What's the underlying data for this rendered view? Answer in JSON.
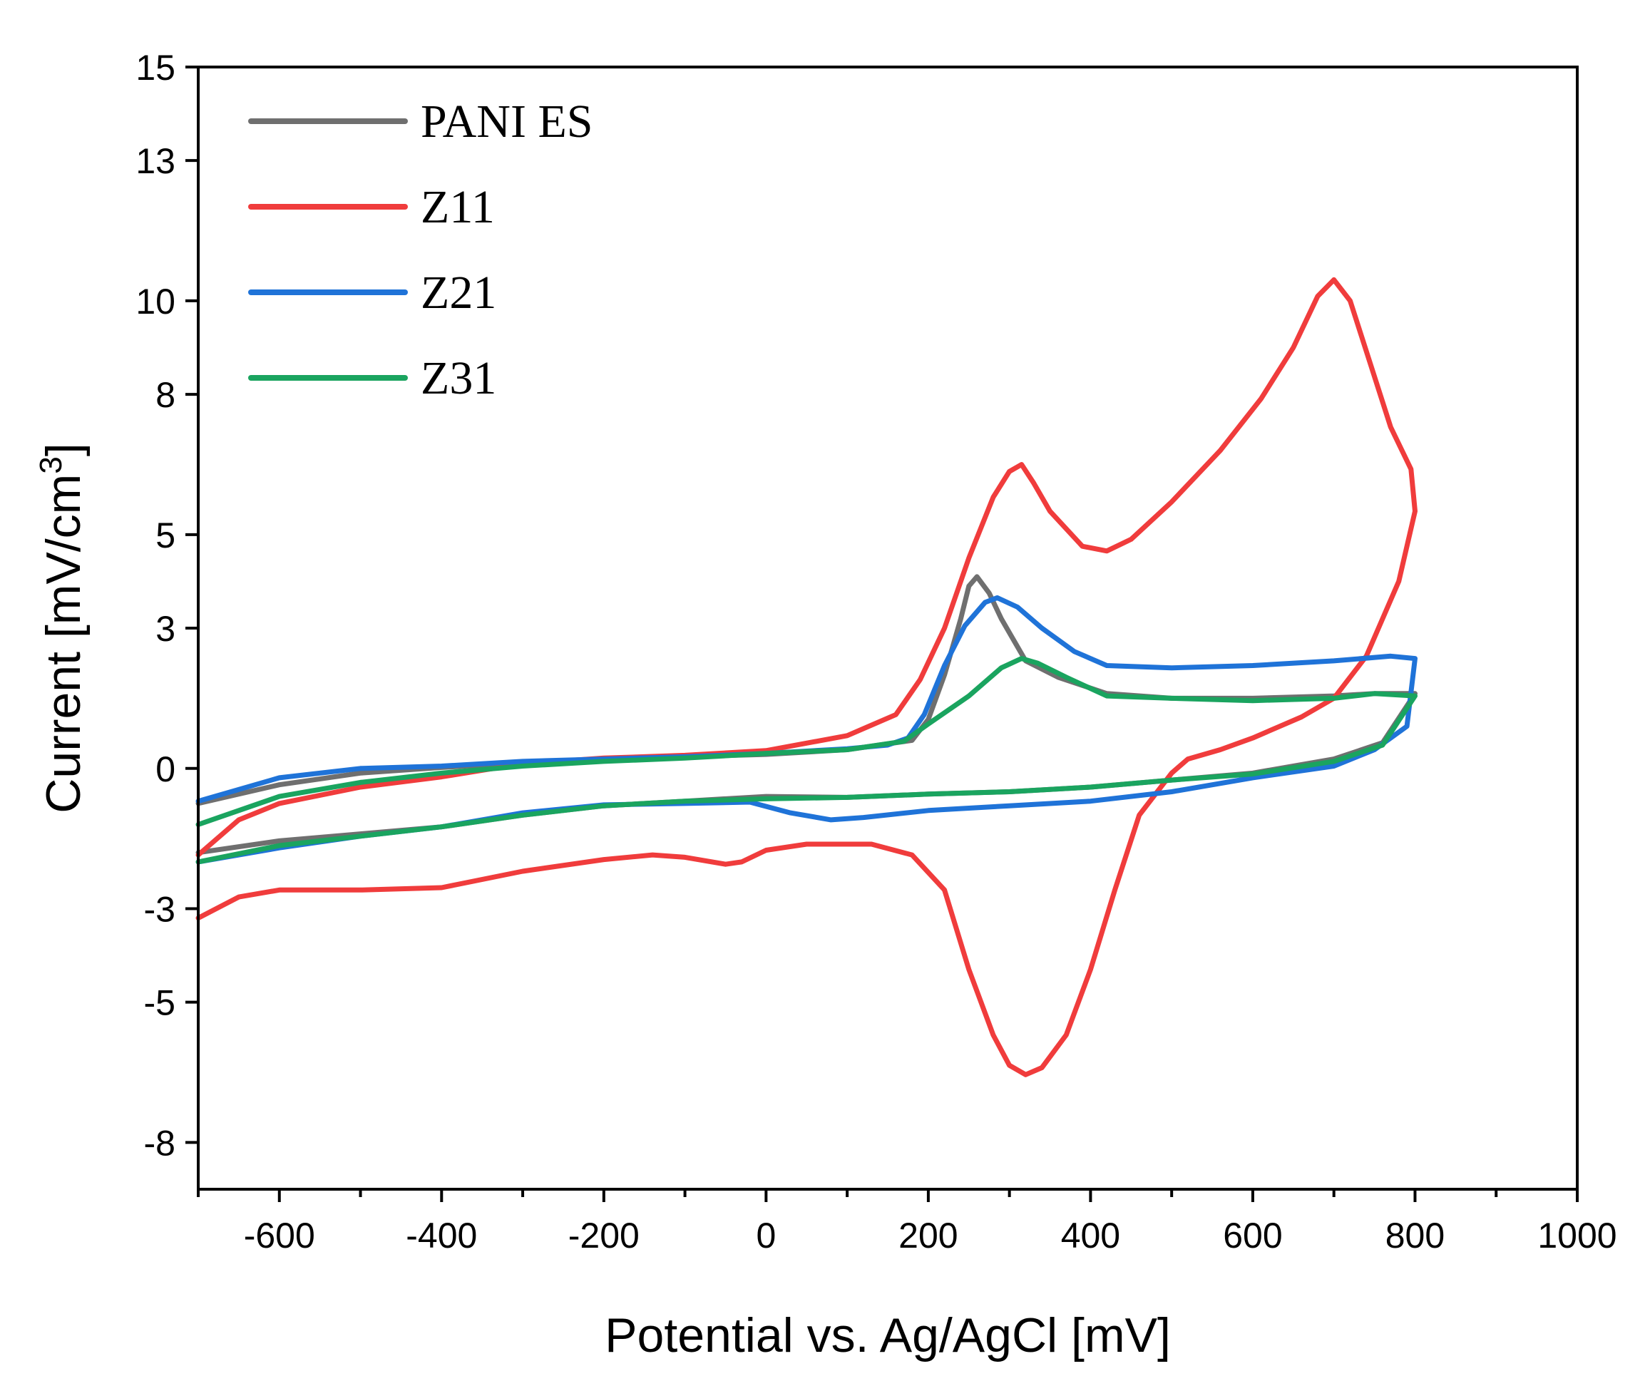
{
  "chart_data": {
    "type": "line",
    "title": "",
    "xlabel": "Potential vs. Ag/AgCl [mV]",
    "ylabel": "Current [mV/cm",
    "ylabel_sup": "3",
    "ylabel_end": "]",
    "xlim": [
      -700,
      1000
    ],
    "ylim": [
      -9,
      15
    ],
    "x_ticks": [
      -600,
      -400,
      -200,
      0,
      200,
      400,
      600,
      800,
      1000
    ],
    "x_tick_labels": [
      "-600",
      "-400",
      "-200",
      "0",
      "200",
      "400",
      "600",
      "800",
      "1000"
    ],
    "y_ticks": [
      -8,
      -5,
      -3,
      0,
      3,
      5,
      8,
      10,
      13,
      15
    ],
    "y_tick_labels": [
      "-8",
      "-5",
      "-3",
      "0",
      "3",
      "5",
      "8",
      "10",
      "13",
      "15"
    ],
    "legend_position": "top-left",
    "series": [
      {
        "name": "PANI ES",
        "color": "#6f6f6f",
        "points": [
          [
            -700,
            -1.8
          ],
          [
            -600,
            -1.55
          ],
          [
            -500,
            -1.4
          ],
          [
            -400,
            -1.25
          ],
          [
            -300,
            -1.0
          ],
          [
            -200,
            -0.8
          ],
          [
            -100,
            -0.7
          ],
          [
            0,
            -0.6
          ],
          [
            100,
            -0.62
          ],
          [
            200,
            -0.55
          ],
          [
            300,
            -0.5
          ],
          [
            400,
            -0.4
          ],
          [
            500,
            -0.25
          ],
          [
            600,
            -0.1
          ],
          [
            700,
            0.2
          ],
          [
            760,
            0.55
          ],
          [
            800,
            1.6
          ],
          [
            750,
            1.6
          ],
          [
            700,
            1.55
          ],
          [
            600,
            1.5
          ],
          [
            500,
            1.5
          ],
          [
            420,
            1.6
          ],
          [
            360,
            1.95
          ],
          [
            320,
            2.3
          ],
          [
            290,
            3.2
          ],
          [
            275,
            3.75
          ],
          [
            260,
            4.1
          ],
          [
            250,
            3.9
          ],
          [
            240,
            3.2
          ],
          [
            220,
            2.0
          ],
          [
            200,
            1.05
          ],
          [
            180,
            0.6
          ],
          [
            100,
            0.4
          ],
          [
            0,
            0.3
          ],
          [
            -100,
            0.25
          ],
          [
            -200,
            0.2
          ],
          [
            -300,
            0.12
          ],
          [
            -400,
            0.02
          ],
          [
            -500,
            -0.1
          ],
          [
            -600,
            -0.35
          ],
          [
            -700,
            -0.75
          ]
        ]
      },
      {
        "name": "Z11",
        "color": "#f03c3c",
        "points": [
          [
            -700,
            -3.2
          ],
          [
            -650,
            -2.75
          ],
          [
            -600,
            -2.6
          ],
          [
            -500,
            -2.6
          ],
          [
            -400,
            -2.55
          ],
          [
            -300,
            -2.2
          ],
          [
            -200,
            -1.95
          ],
          [
            -140,
            -1.85
          ],
          [
            -100,
            -1.9
          ],
          [
            -50,
            -2.05
          ],
          [
            -30,
            -2.0
          ],
          [
            0,
            -1.75
          ],
          [
            50,
            -1.62
          ],
          [
            130,
            -1.62
          ],
          [
            180,
            -1.85
          ],
          [
            220,
            -2.6
          ],
          [
            250,
            -4.3
          ],
          [
            280,
            -5.7
          ],
          [
            300,
            -6.35
          ],
          [
            320,
            -6.55
          ],
          [
            340,
            -6.4
          ],
          [
            370,
            -5.7
          ],
          [
            400,
            -4.3
          ],
          [
            430,
            -2.6
          ],
          [
            460,
            -1.0
          ],
          [
            500,
            -0.1
          ],
          [
            520,
            0.2
          ],
          [
            560,
            0.4
          ],
          [
            600,
            0.65
          ],
          [
            660,
            1.1
          ],
          [
            700,
            1.5
          ],
          [
            740,
            2.4
          ],
          [
            780,
            4.0
          ],
          [
            800,
            5.5
          ],
          [
            795,
            6.4
          ],
          [
            770,
            7.3
          ],
          [
            720,
            10.0
          ],
          [
            700,
            10.45
          ],
          [
            680,
            10.1
          ],
          [
            650,
            9.0
          ],
          [
            610,
            7.9
          ],
          [
            560,
            6.8
          ],
          [
            500,
            5.7
          ],
          [
            450,
            4.9
          ],
          [
            420,
            4.65
          ],
          [
            390,
            4.75
          ],
          [
            350,
            5.5
          ],
          [
            330,
            6.1
          ],
          [
            315,
            6.5
          ],
          [
            300,
            6.35
          ],
          [
            280,
            5.8
          ],
          [
            250,
            4.5
          ],
          [
            220,
            3.0
          ],
          [
            190,
            1.9
          ],
          [
            160,
            1.15
          ],
          [
            100,
            0.7
          ],
          [
            0,
            0.38
          ],
          [
            -100,
            0.28
          ],
          [
            -200,
            0.22
          ],
          [
            -300,
            0.1
          ],
          [
            -400,
            -0.18
          ],
          [
            -500,
            -0.4
          ],
          [
            -600,
            -0.75
          ],
          [
            -650,
            -1.1
          ],
          [
            -700,
            -1.85
          ]
        ]
      },
      {
        "name": "Z21",
        "color": "#1f73d8",
        "points": [
          [
            -700,
            -2.0
          ],
          [
            -600,
            -1.7
          ],
          [
            -500,
            -1.45
          ],
          [
            -400,
            -1.25
          ],
          [
            -300,
            -0.95
          ],
          [
            -200,
            -0.78
          ],
          [
            -100,
            -0.75
          ],
          [
            -20,
            -0.72
          ],
          [
            30,
            -0.95
          ],
          [
            80,
            -1.1
          ],
          [
            120,
            -1.05
          ],
          [
            200,
            -0.9
          ],
          [
            300,
            -0.8
          ],
          [
            400,
            -0.7
          ],
          [
            500,
            -0.5
          ],
          [
            600,
            -0.2
          ],
          [
            700,
            0.05
          ],
          [
            750,
            0.4
          ],
          [
            790,
            0.9
          ],
          [
            800,
            2.35
          ],
          [
            770,
            2.4
          ],
          [
            700,
            2.3
          ],
          [
            600,
            2.2
          ],
          [
            500,
            2.15
          ],
          [
            420,
            2.2
          ],
          [
            380,
            2.5
          ],
          [
            340,
            3.0
          ],
          [
            310,
            3.45
          ],
          [
            285,
            3.65
          ],
          [
            270,
            3.55
          ],
          [
            245,
            3.05
          ],
          [
            220,
            2.2
          ],
          [
            195,
            1.15
          ],
          [
            175,
            0.65
          ],
          [
            150,
            0.5
          ],
          [
            100,
            0.42
          ],
          [
            0,
            0.32
          ],
          [
            -100,
            0.25
          ],
          [
            -200,
            0.2
          ],
          [
            -300,
            0.15
          ],
          [
            -400,
            0.05
          ],
          [
            -500,
            0.0
          ],
          [
            -600,
            -0.2
          ],
          [
            -700,
            -0.7
          ]
        ]
      },
      {
        "name": "Z31",
        "color": "#1aa45f",
        "points": [
          [
            -700,
            -2.0
          ],
          [
            -600,
            -1.65
          ],
          [
            -500,
            -1.45
          ],
          [
            -400,
            -1.25
          ],
          [
            -300,
            -1.0
          ],
          [
            -200,
            -0.8
          ],
          [
            -100,
            -0.7
          ],
          [
            0,
            -0.65
          ],
          [
            100,
            -0.62
          ],
          [
            200,
            -0.55
          ],
          [
            300,
            -0.5
          ],
          [
            400,
            -0.4
          ],
          [
            500,
            -0.25
          ],
          [
            600,
            -0.12
          ],
          [
            700,
            0.15
          ],
          [
            760,
            0.5
          ],
          [
            800,
            1.55
          ],
          [
            750,
            1.6
          ],
          [
            700,
            1.5
          ],
          [
            600,
            1.45
          ],
          [
            500,
            1.5
          ],
          [
            420,
            1.55
          ],
          [
            370,
            1.95
          ],
          [
            335,
            2.25
          ],
          [
            315,
            2.35
          ],
          [
            290,
            2.15
          ],
          [
            250,
            1.55
          ],
          [
            200,
            0.95
          ],
          [
            170,
            0.58
          ],
          [
            100,
            0.4
          ],
          [
            0,
            0.32
          ],
          [
            -100,
            0.22
          ],
          [
            -200,
            0.15
          ],
          [
            -300,
            0.05
          ],
          [
            -400,
            -0.1
          ],
          [
            -500,
            -0.3
          ],
          [
            -600,
            -0.6
          ],
          [
            -700,
            -1.2
          ]
        ]
      }
    ]
  }
}
